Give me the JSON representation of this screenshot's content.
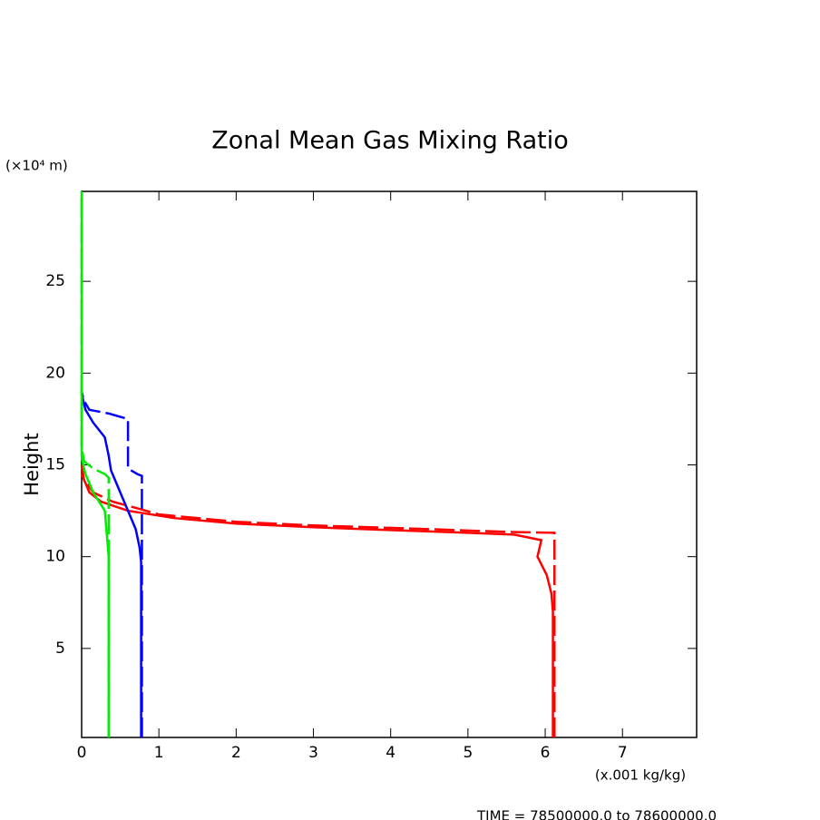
{
  "chart_data": {
    "type": "line",
    "title": "Zonal Mean Gas Mixing Ratio",
    "ylabel": "Height",
    "y_unit": "(×10⁴ m)",
    "x_unit": "(x.001 kg/kg)",
    "footer": "TIME = 78500000.0 to 78600000.0",
    "xlim": [
      0,
      7.96
    ],
    "xticks": [
      0,
      1,
      2,
      3,
      4,
      5,
      6,
      7
    ],
    "ylim": [
      0.15,
      29.9
    ],
    "yticks": [
      5,
      10,
      15,
      20,
      25
    ],
    "grid": false,
    "series": [
      {
        "color": "#ff0000",
        "dashed": false,
        "heights": [
          0.15,
          7,
          8,
          9,
          10,
          10.9,
          11.2,
          11.3,
          11.45,
          11.6,
          11.8,
          12.1,
          12.5,
          13,
          13.5,
          14.5
        ],
        "values": [
          6.1,
          6.1,
          6.08,
          6.02,
          5.9,
          5.95,
          5.6,
          5.0,
          4.0,
          3.0,
          2.0,
          1.2,
          0.6,
          0.25,
          0.1,
          0.0
        ]
      },
      {
        "color": "#ff0000",
        "dashed": true,
        "heights": [
          0.15,
          11.3,
          11.35,
          11.5,
          11.7,
          11.9,
          12.3,
          12.6,
          13,
          13.5,
          14.2,
          15
        ],
        "values": [
          6.12,
          6.12,
          5.5,
          4.5,
          3.0,
          2.0,
          1.0,
          0.75,
          0.4,
          0.15,
          0.03,
          0
        ]
      },
      {
        "color": "#0000ff",
        "dashed": false,
        "heights": [
          0.15,
          9.7,
          10.5,
          11.5,
          12.3,
          13,
          14,
          14.7,
          15.5,
          16.5,
          17.3,
          18,
          18.5,
          19
        ],
        "values": [
          0.77,
          0.77,
          0.75,
          0.7,
          0.62,
          0.55,
          0.45,
          0.38,
          0.35,
          0.3,
          0.15,
          0.05,
          0.02,
          0
        ]
      },
      {
        "color": "#0000ff",
        "dashed": true,
        "heights": [
          0.15,
          14.4,
          14.5,
          14.8,
          17.5,
          17.8,
          18,
          18.5,
          19
        ],
        "values": [
          0.78,
          0.78,
          0.72,
          0.6,
          0.6,
          0.35,
          0.1,
          0.03,
          0
        ]
      },
      {
        "color": "#00ee00",
        "dashed": false,
        "heights": [
          0.15,
          10,
          11,
          12.5,
          13.5,
          14.5,
          15,
          15.5,
          29.9
        ],
        "values": [
          0.35,
          0.35,
          0.33,
          0.3,
          0.15,
          0.05,
          0.02,
          0,
          0
        ]
      },
      {
        "color": "#00ee00",
        "dashed": true,
        "heights": [
          0.15,
          14.3,
          14.5,
          14.8,
          15.2,
          16,
          29.9
        ],
        "values": [
          0.35,
          0.35,
          0.3,
          0.15,
          0.03,
          0,
          0
        ]
      }
    ]
  }
}
